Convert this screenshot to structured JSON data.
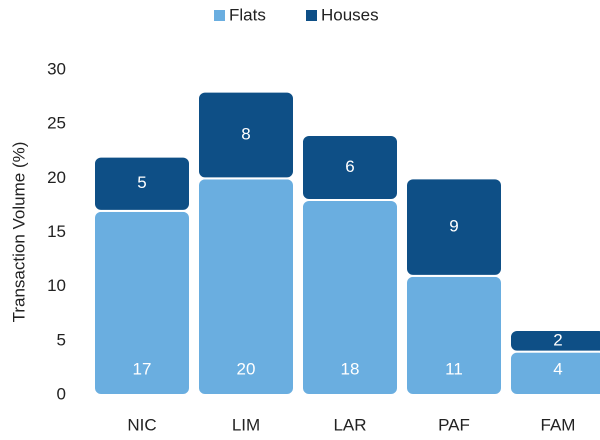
{
  "chart_data": {
    "type": "stacked_bar",
    "y_label": "Transaction Volume (%)",
    "categories": [
      "NIC",
      "LIM",
      "LAR",
      "PAF",
      "FAM"
    ],
    "series": [
      {
        "name": "Flats",
        "color": "#6aaee0",
        "values": [
          17,
          20,
          18,
          11,
          4
        ]
      },
      {
        "name": "Houses",
        "color": "#0e4f86",
        "values": [
          5,
          8,
          6,
          9,
          2
        ]
      }
    ],
    "ylim": [
      0,
      30
    ],
    "yticks": [
      0,
      5,
      10,
      15,
      20,
      25,
      30
    ],
    "grid": false,
    "legend": "top"
  }
}
